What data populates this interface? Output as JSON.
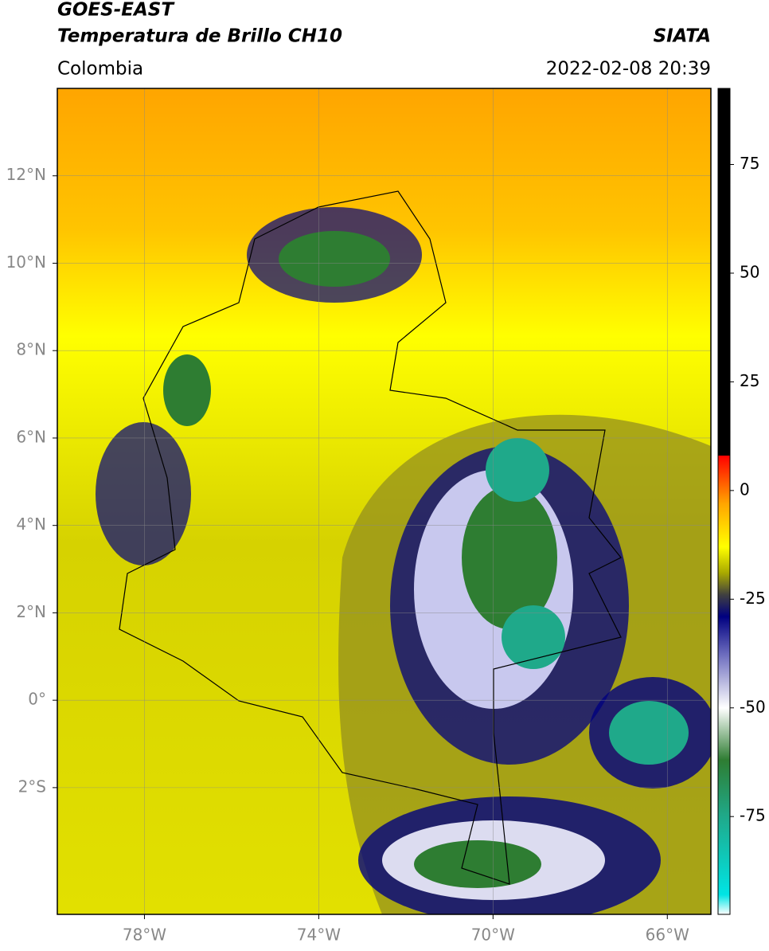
{
  "header": {
    "title": "GOES-EAST",
    "subtitle": "Temperatura de Brillo CH10",
    "region": "Colombia",
    "source": "SIATA",
    "datetime": "2022-02-08 20:39"
  },
  "map": {
    "xlim": [
      -80,
      -65
    ],
    "ylim": [
      -4.9,
      14
    ],
    "xticks": [
      {
        "value": -78,
        "label": "78°W"
      },
      {
        "value": -74,
        "label": "74°W"
      },
      {
        "value": -70,
        "label": "70°W"
      },
      {
        "value": -66,
        "label": "66°W"
      }
    ],
    "yticks": [
      {
        "value": 12,
        "label": "12°N"
      },
      {
        "value": 10,
        "label": "10°N"
      },
      {
        "value": 8,
        "label": "8°N"
      },
      {
        "value": 6,
        "label": "6°N"
      },
      {
        "value": 4,
        "label": "4°N"
      },
      {
        "value": 2,
        "label": "2°N"
      },
      {
        "value": 0,
        "label": "0°"
      },
      {
        "value": -2,
        "label": "2°S"
      }
    ]
  },
  "colorbar": {
    "lim": [
      -97.5,
      92.5
    ],
    "ticks": [
      -75,
      -50,
      -25,
      0,
      25,
      50,
      75
    ],
    "stops": [
      {
        "value": -97.5,
        "color": "#ffffff"
      },
      {
        "value": -93,
        "color": "#00e5e5"
      },
      {
        "value": -75,
        "color": "#1fa98a"
      },
      {
        "value": -62,
        "color": "#2e7d32"
      },
      {
        "value": -50,
        "color": "#ffffff"
      },
      {
        "value": -38,
        "color": "#7070c0"
      },
      {
        "value": -29,
        "color": "#000080"
      },
      {
        "value": -24,
        "color": "#404040"
      },
      {
        "value": -19,
        "color": "#a8a800"
      },
      {
        "value": -13,
        "color": "#ffff00"
      },
      {
        "value": -3,
        "color": "#ffa500"
      },
      {
        "value": 8,
        "color": "#ff0000"
      },
      {
        "value": 8.01,
        "color": "#000000"
      },
      {
        "value": 92.5,
        "color": "#000000"
      }
    ]
  }
}
